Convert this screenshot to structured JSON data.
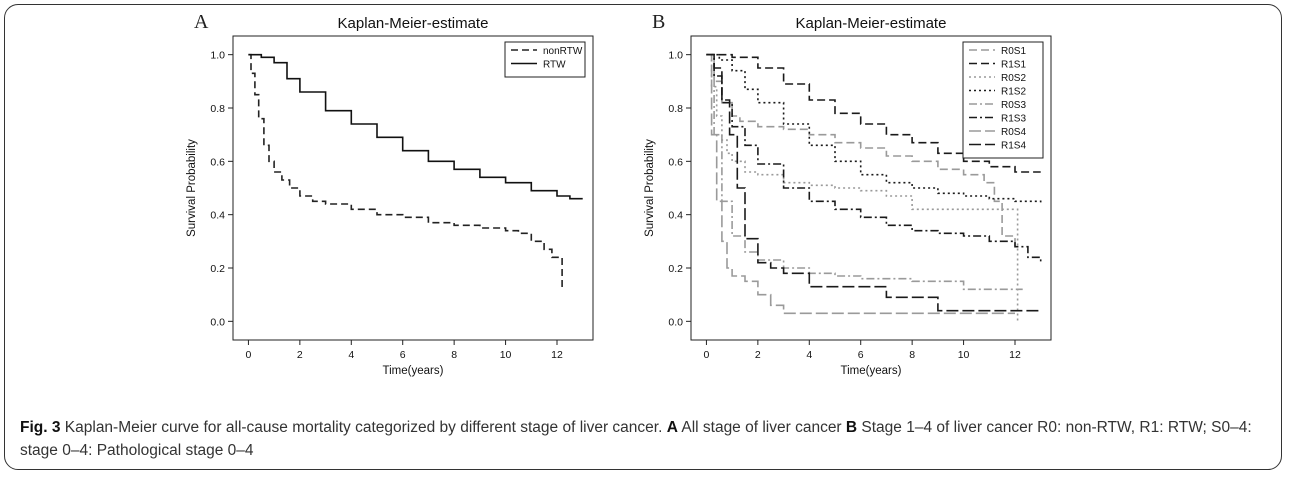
{
  "caption": {
    "fig_label": "Fig. 3",
    "main": " Kaplan-Meier curve for all-cause mortality categorized by different stage of liver cancer. ",
    "a_label": "A",
    "a_text": " All stage of liver cancer ",
    "b_label": "B",
    "b_text": " Stage 1–4 of liver cancer R0: non-RTW, R1: RTW; S0–4: stage 0–4: Pathological stage 0–4"
  },
  "chart_data": [
    {
      "panel": "A",
      "type": "line",
      "title": "Kaplan-Meier-estimate",
      "xlabel": "Time(years)",
      "ylabel": "Survival Probability",
      "xlim": [
        -0.6,
        13.4
      ],
      "ylim": [
        -0.07,
        1.07
      ],
      "xticks": [
        0,
        2,
        4,
        6,
        8,
        10,
        12
      ],
      "yticks": [
        0.0,
        0.2,
        0.4,
        0.6,
        0.8,
        1.0
      ],
      "ytick_labels": [
        "0.0",
        "0.2",
        "0.4",
        "0.6",
        "0.8",
        "1.0"
      ],
      "grid": false,
      "legend_position": "top-right",
      "series": [
        {
          "name": "nonRTW",
          "color": "#222222",
          "dash": "7,4",
          "x": [
            0,
            0.1,
            0.25,
            0.4,
            0.6,
            0.8,
            1.0,
            1.3,
            1.6,
            2,
            2.5,
            3,
            4,
            5,
            6,
            7,
            8,
            9,
            10,
            10.5,
            11,
            11.5,
            11.8,
            12.0,
            12.2
          ],
          "y": [
            1.0,
            0.93,
            0.85,
            0.76,
            0.66,
            0.6,
            0.56,
            0.53,
            0.5,
            0.47,
            0.45,
            0.44,
            0.42,
            0.4,
            0.39,
            0.37,
            0.36,
            0.35,
            0.34,
            0.33,
            0.3,
            0.27,
            0.24,
            0.24,
            0.12
          ]
        },
        {
          "name": "RTW",
          "color": "#111111",
          "dash": "",
          "x": [
            0,
            0.5,
            1,
            1.5,
            2,
            3,
            4,
            5,
            6,
            7,
            8,
            9,
            10,
            11,
            12,
            12.5,
            13
          ],
          "y": [
            1.0,
            0.99,
            0.97,
            0.91,
            0.86,
            0.79,
            0.74,
            0.69,
            0.64,
            0.6,
            0.57,
            0.54,
            0.52,
            0.49,
            0.47,
            0.46,
            0.46
          ]
        }
      ]
    },
    {
      "panel": "B",
      "type": "line",
      "title": "Kaplan-Meier-estimate",
      "xlabel": "Time(years)",
      "ylabel": "Survival Probability",
      "xlim": [
        -0.6,
        13.4
      ],
      "ylim": [
        -0.07,
        1.07
      ],
      "xticks": [
        0,
        2,
        4,
        6,
        8,
        10,
        12
      ],
      "yticks": [
        0.0,
        0.2,
        0.4,
        0.6,
        0.8,
        1.0
      ],
      "ytick_labels": [
        "0.0",
        "0.2",
        "0.4",
        "0.6",
        "0.8",
        "1.0"
      ],
      "grid": false,
      "legend_position": "top-right",
      "series": [
        {
          "name": "R0S1",
          "color": "#9a9a9a",
          "dash": "8,4",
          "x": [
            0,
            0.3,
            0.6,
            1,
            1.3,
            2,
            3,
            4,
            5,
            6,
            7,
            8,
            9,
            10,
            10.8,
            11.2,
            11.5,
            12
          ],
          "y": [
            1.0,
            0.9,
            0.82,
            0.77,
            0.75,
            0.73,
            0.72,
            0.7,
            0.67,
            0.65,
            0.62,
            0.6,
            0.57,
            0.55,
            0.52,
            0.45,
            0.32,
            0.27
          ]
        },
        {
          "name": "R1S1",
          "color": "#1a1a1a",
          "dash": "8,4",
          "x": [
            0,
            1,
            2,
            3,
            4,
            5,
            6,
            7,
            8,
            9,
            10,
            11,
            12,
            12.5,
            13
          ],
          "y": [
            1.0,
            0.99,
            0.95,
            0.89,
            0.83,
            0.78,
            0.74,
            0.7,
            0.67,
            0.63,
            0.6,
            0.58,
            0.56,
            0.56,
            0.56
          ]
        },
        {
          "name": "R0S2",
          "color": "#9a9a9a",
          "dash": "2,3",
          "x": [
            0,
            0.2,
            0.4,
            0.6,
            0.8,
            1,
            1.5,
            2,
            3,
            4,
            5,
            6,
            7,
            8,
            9,
            10,
            11,
            12,
            12.1
          ],
          "y": [
            1.0,
            0.88,
            0.77,
            0.68,
            0.63,
            0.6,
            0.56,
            0.55,
            0.52,
            0.51,
            0.5,
            0.49,
            0.47,
            0.42,
            0.42,
            0.42,
            0.42,
            0.42,
            0.0
          ]
        },
        {
          "name": "R1S2",
          "color": "#1a1a1a",
          "dash": "2,3",
          "x": [
            0,
            0.5,
            1,
            1.5,
            2,
            3,
            4,
            5,
            6,
            7,
            8,
            9,
            10,
            11,
            12,
            13
          ],
          "y": [
            1.0,
            0.98,
            0.94,
            0.87,
            0.82,
            0.74,
            0.66,
            0.6,
            0.55,
            0.52,
            0.5,
            0.48,
            0.47,
            0.46,
            0.45,
            0.44
          ]
        },
        {
          "name": "R0S3",
          "color": "#9a9a9a",
          "dash": "8,3,2,3",
          "x": [
            0,
            0.3,
            0.6,
            1,
            1.5,
            2,
            3,
            4,
            5,
            6,
            8,
            10,
            12,
            12.3
          ],
          "y": [
            1.0,
            0.7,
            0.45,
            0.32,
            0.26,
            0.23,
            0.2,
            0.18,
            0.17,
            0.16,
            0.15,
            0.12,
            0.12,
            0.12
          ]
        },
        {
          "name": "R1S3",
          "color": "#1a1a1a",
          "dash": "8,3,2,3",
          "x": [
            0,
            0.3,
            0.6,
            1,
            1.5,
            2,
            3,
            4,
            5,
            6,
            7,
            8,
            9,
            10,
            11,
            12,
            12.5,
            13
          ],
          "y": [
            1.0,
            0.92,
            0.82,
            0.73,
            0.66,
            0.59,
            0.5,
            0.45,
            0.42,
            0.39,
            0.36,
            0.34,
            0.33,
            0.32,
            0.3,
            0.28,
            0.24,
            0.22
          ]
        },
        {
          "name": "R0S4",
          "color": "#9a9a9a",
          "dash": "12,4",
          "x": [
            0,
            0.2,
            0.4,
            0.6,
            0.8,
            1,
            1.5,
            2,
            2.5,
            3,
            5,
            10,
            12
          ],
          "y": [
            1.0,
            0.7,
            0.45,
            0.3,
            0.2,
            0.17,
            0.15,
            0.1,
            0.06,
            0.03,
            0.03,
            0.03,
            0.03
          ]
        },
        {
          "name": "R1S4",
          "color": "#1a1a1a",
          "dash": "12,4",
          "x": [
            0,
            0.3,
            0.6,
            0.9,
            1.2,
            1.5,
            2,
            2.5,
            3,
            4,
            5,
            6,
            7,
            8,
            9,
            10,
            13
          ],
          "y": [
            1.0,
            0.95,
            0.83,
            0.7,
            0.5,
            0.31,
            0.22,
            0.2,
            0.18,
            0.13,
            0.13,
            0.13,
            0.09,
            0.09,
            0.04,
            0.04,
            0.04
          ]
        }
      ]
    }
  ]
}
